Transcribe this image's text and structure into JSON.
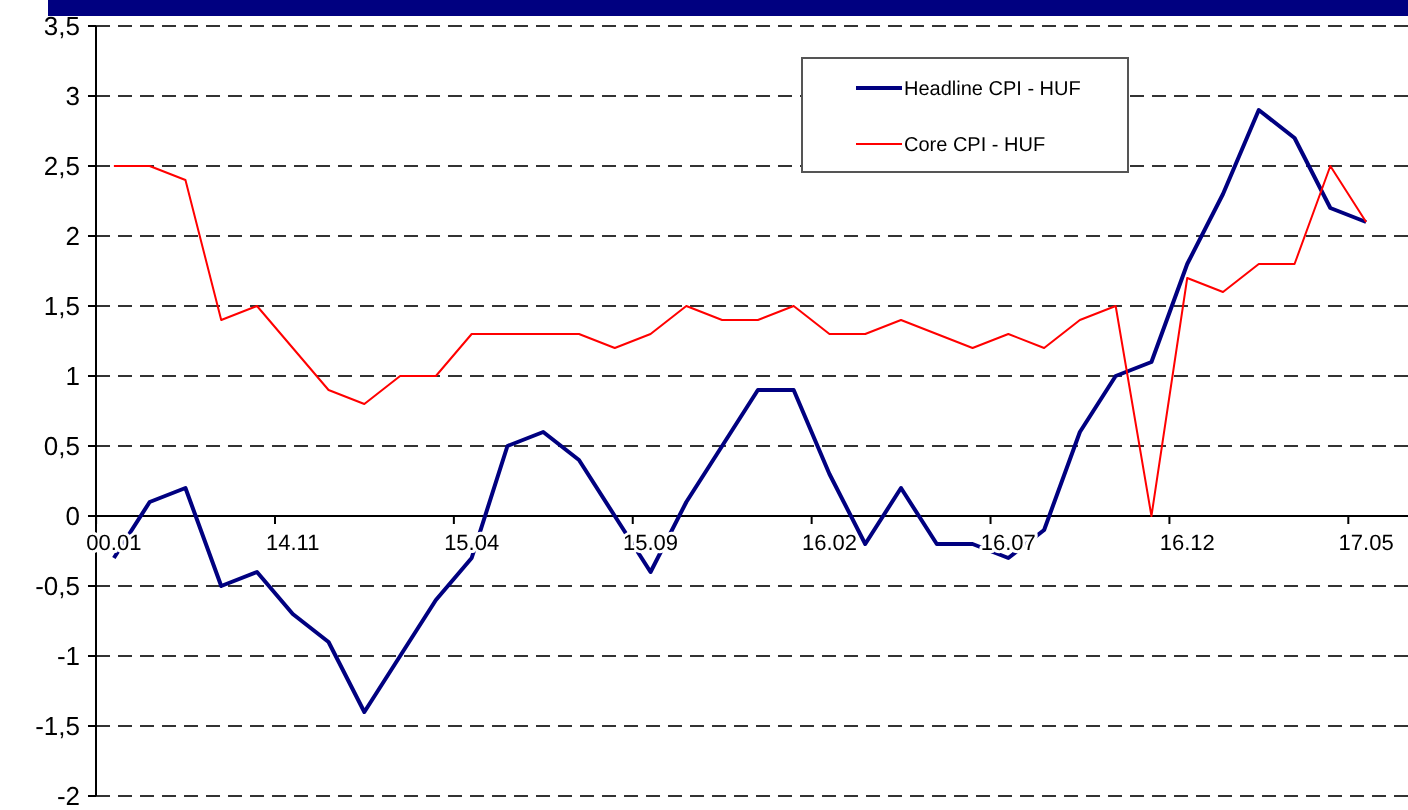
{
  "chart_data": {
    "type": "line",
    "categories": [
      "00.01",
      null,
      null,
      null,
      null,
      "14.11",
      null,
      null,
      null,
      null,
      "15.04",
      null,
      null,
      null,
      null,
      "15.09",
      null,
      null,
      null,
      null,
      "16.02",
      null,
      null,
      null,
      null,
      "16.07",
      null,
      null,
      null,
      null,
      "16.12",
      null,
      null,
      null,
      null,
      "17.05"
    ],
    "series": [
      {
        "name": "Headline CPI - HUF",
        "color": "#000080",
        "values": [
          -0.3,
          0.1,
          0.2,
          -0.5,
          -0.4,
          -0.7,
          -0.9,
          -1.4,
          -1.0,
          -0.6,
          -0.3,
          0.5,
          0.6,
          0.4,
          0.0,
          -0.4,
          0.1,
          0.5,
          0.9,
          0.9,
          0.3,
          -0.2,
          0.2,
          -0.2,
          -0.2,
          -0.3,
          -0.1,
          0.6,
          1.0,
          1.1,
          1.8,
          2.3,
          2.9,
          2.7,
          2.2,
          2.1
        ]
      },
      {
        "name": "Core CPI - HUF",
        "color": "#ff0000",
        "values": [
          2.5,
          2.5,
          2.4,
          1.4,
          1.5,
          1.2,
          0.9,
          0.8,
          1.0,
          1.0,
          1.3,
          1.3,
          1.3,
          1.3,
          1.2,
          1.3,
          1.5,
          1.4,
          1.4,
          1.5,
          1.3,
          1.3,
          1.4,
          1.3,
          1.2,
          1.3,
          1.2,
          1.4,
          1.5,
          0.0,
          1.7,
          1.6,
          1.8,
          1.8,
          2.5,
          2.1
        ]
      }
    ],
    "ylim": [
      -2,
      3.5
    ],
    "yticks": [
      -2,
      {
        "value": -1.5,
        "label": "-1,5"
      },
      -1,
      {
        "value": -0.5,
        "label": "-0,5"
      },
      0,
      {
        "value": 0.5,
        "label": "0,5"
      },
      1,
      {
        "value": 1.5,
        "label": "1,5"
      },
      2,
      {
        "value": 2.5,
        "label": "2,5"
      },
      3,
      {
        "value": 3.5,
        "label": "3,5"
      }
    ],
    "grid": "y",
    "legend": "top",
    "line_style": "solid"
  }
}
